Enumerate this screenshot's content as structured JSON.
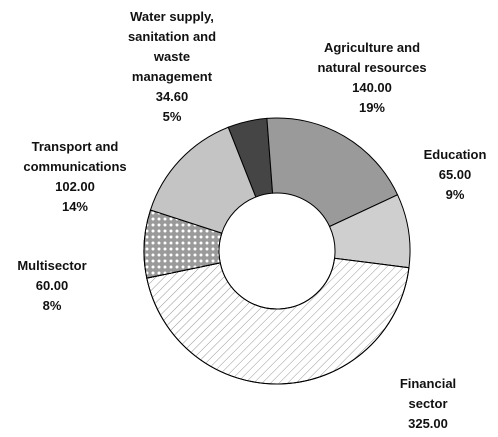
{
  "chart_data": {
    "type": "donut",
    "categories": [
      "Water supply,\nsanitation and\nwaste\nmanagement",
      "Agriculture and\nnatural resources",
      "Education",
      "Financial sector",
      "Multisector",
      "Transport and\ncommunications"
    ],
    "values": [
      34.6,
      140,
      65,
      325,
      60,
      102
    ],
    "value_labels": [
      "34.60",
      "140.00",
      "65.00",
      "325.00",
      "60.00",
      "102.00"
    ],
    "percents": [
      5,
      19,
      9,
      45,
      8,
      14
    ],
    "percent_labels": [
      "5%",
      "19%",
      "9%",
      "45%",
      "8%",
      "14%"
    ],
    "colors": [
      "#454545",
      "#9a9a9a",
      "#cfcfcf",
      "#ffffff",
      "#9a9a9a",
      "#c4c4c4"
    ]
  }
}
